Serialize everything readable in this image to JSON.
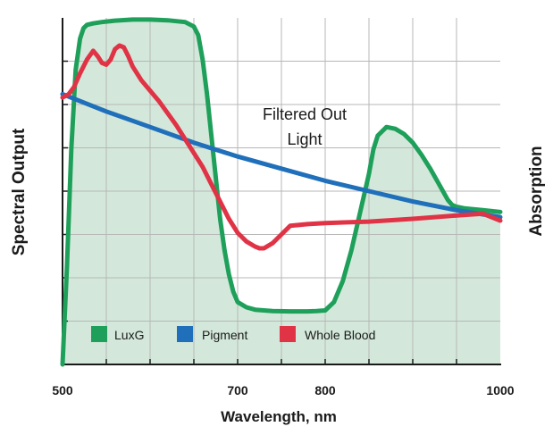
{
  "chart_data": {
    "type": "line",
    "title": "",
    "xlabel": "Wavelength, nm",
    "ylabel_left": "Spectral Output",
    "ylabel_right": "Absorption",
    "xlim": [
      500,
      1000
    ],
    "ylim": [
      0,
      100
    ],
    "x_ticks": [
      500,
      700,
      800,
      1000
    ],
    "grid": true,
    "legend_position": "bottom-left",
    "annotation_lines": [
      "Filtered Out",
      "Light"
    ],
    "series": [
      {
        "name": "LuxG",
        "color": "#1ea05a",
        "fill": "#d3e8da",
        "x": [
          500,
          505,
          510,
          515,
          520,
          524,
          528,
          535,
          545,
          560,
          580,
          600,
          620,
          640,
          650,
          655,
          660,
          665,
          670,
          675,
          680,
          685,
          690,
          695,
          700,
          710,
          720,
          740,
          760,
          780,
          790,
          800,
          810,
          820,
          830,
          840,
          850,
          855,
          860,
          870,
          880,
          890,
          900,
          910,
          920,
          930,
          940,
          945,
          950,
          960,
          980,
          1000
        ],
        "y": [
          0,
          28,
          62,
          85,
          94,
          97,
          98,
          98.4,
          98.8,
          99.2,
          99.5,
          99.5,
          99.3,
          98.8,
          97.5,
          95,
          88,
          78,
          66,
          54,
          42,
          33,
          26,
          21,
          18,
          16.5,
          15.8,
          15.4,
          15.3,
          15.3,
          15.4,
          15.6,
          18,
          24,
          33,
          44,
          55,
          62,
          66,
          68.5,
          68,
          66.5,
          64,
          60.5,
          56.5,
          52,
          47.5,
          46,
          45.5,
          45,
          44.5,
          44
        ]
      },
      {
        "name": "Pigment",
        "color": "#1f6fba",
        "x": [
          500,
          550,
          600,
          650,
          700,
          750,
          800,
          850,
          900,
          950,
          1000
        ],
        "y": [
          78,
          73,
          68.5,
          64,
          60,
          56.5,
          53,
          50,
          47,
          44.5,
          42.5
        ]
      },
      {
        "name": "Whole Blood",
        "color": "#e03346",
        "x": [
          500,
          507,
          513,
          520,
          528,
          535,
          540,
          545,
          550,
          555,
          560,
          565,
          570,
          575,
          580,
          585,
          590,
          600,
          610,
          620,
          630,
          640,
          650,
          660,
          670,
          680,
          690,
          700,
          710,
          720,
          725,
          730,
          740,
          750,
          760,
          780,
          800,
          850,
          900,
          950,
          980,
          1000
        ],
        "y": [
          77,
          78,
          80,
          84,
          88,
          90.5,
          89,
          87,
          86.5,
          88,
          91,
          92,
          91.5,
          89,
          86,
          84,
          82,
          79,
          76,
          72.5,
          69,
          65,
          61,
          57,
          52,
          47,
          42,
          38,
          35.5,
          34,
          33.5,
          33.5,
          35,
          37.5,
          40,
          40.5,
          40.8,
          41.2,
          42,
          43,
          43.5,
          41.5
        ]
      }
    ]
  }
}
